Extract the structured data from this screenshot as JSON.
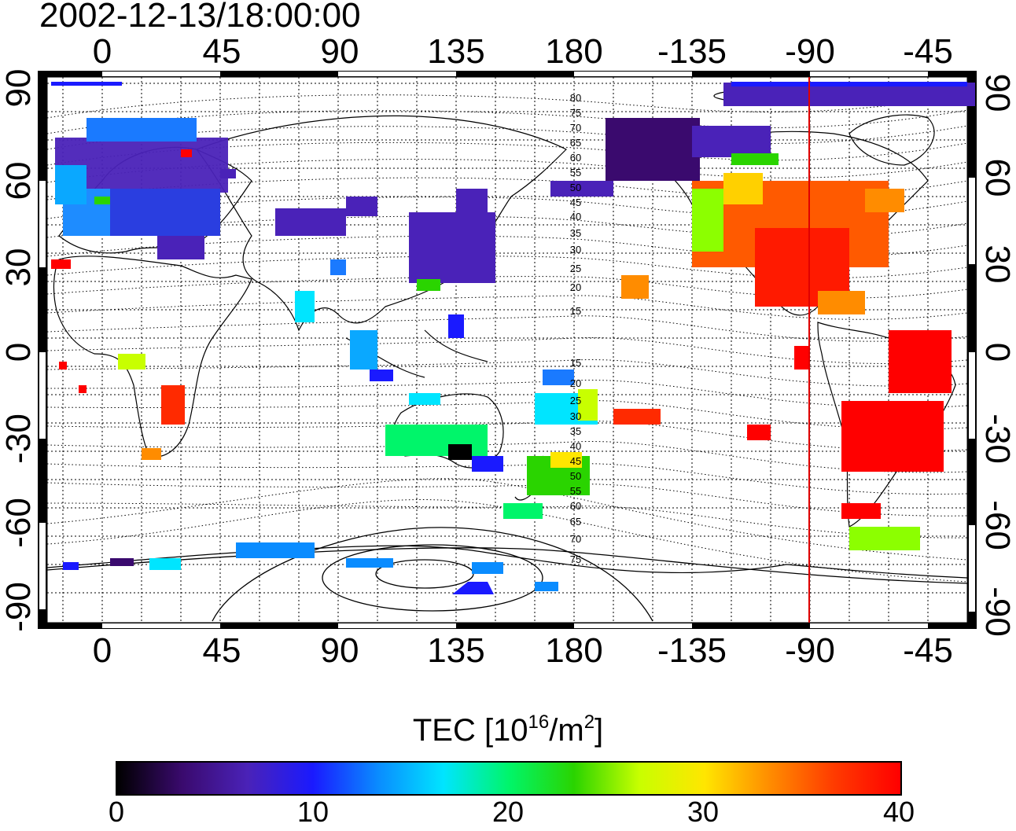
{
  "map": {
    "timestamp": "2002-12-13/18:00:00",
    "lon_ticks_top": [
      "0",
      "45",
      "90",
      "135",
      "180",
      "-135",
      "-90",
      "-45"
    ],
    "lon_ticks_bottom": [
      "0",
      "45",
      "90",
      "135",
      "180",
      "-135",
      "-90",
      "-45"
    ],
    "lat_ticks_left": [
      "90",
      "60",
      "30",
      "0",
      "-30",
      "-60",
      "-90"
    ],
    "lat_ticks_right": [
      "90",
      "60",
      "30",
      "0",
      "-30",
      "-60",
      "-90"
    ],
    "contour_labels_north": [
      "80",
      "75",
      "70",
      "65",
      "60",
      "55",
      "50",
      "45",
      "40",
      "35",
      "30",
      "25",
      "20",
      "15"
    ],
    "contour_labels_south": [
      "15",
      "20",
      "25",
      "30",
      "35",
      "40",
      "45",
      "50",
      "55",
      "60",
      "65",
      "70",
      "75"
    ],
    "terminator_line_color": "#e00000",
    "gridline_style": "dotted"
  },
  "colorbar": {
    "title_prefix": "TEC  [10",
    "title_exp1": "16",
    "title_mid": "/m",
    "title_exp2": "2",
    "title_suffix": "]",
    "ticks": [
      "0",
      "10",
      "20",
      "30",
      "40"
    ],
    "colors": [
      "#000000",
      "#3a0a6e",
      "#4a22b8",
      "#1a1aff",
      "#0a8cff",
      "#00e5ff",
      "#00f56a",
      "#2ad400",
      "#c8ff00",
      "#ffe600",
      "#ff8c00",
      "#ff3a00",
      "#ff0000"
    ]
  }
}
